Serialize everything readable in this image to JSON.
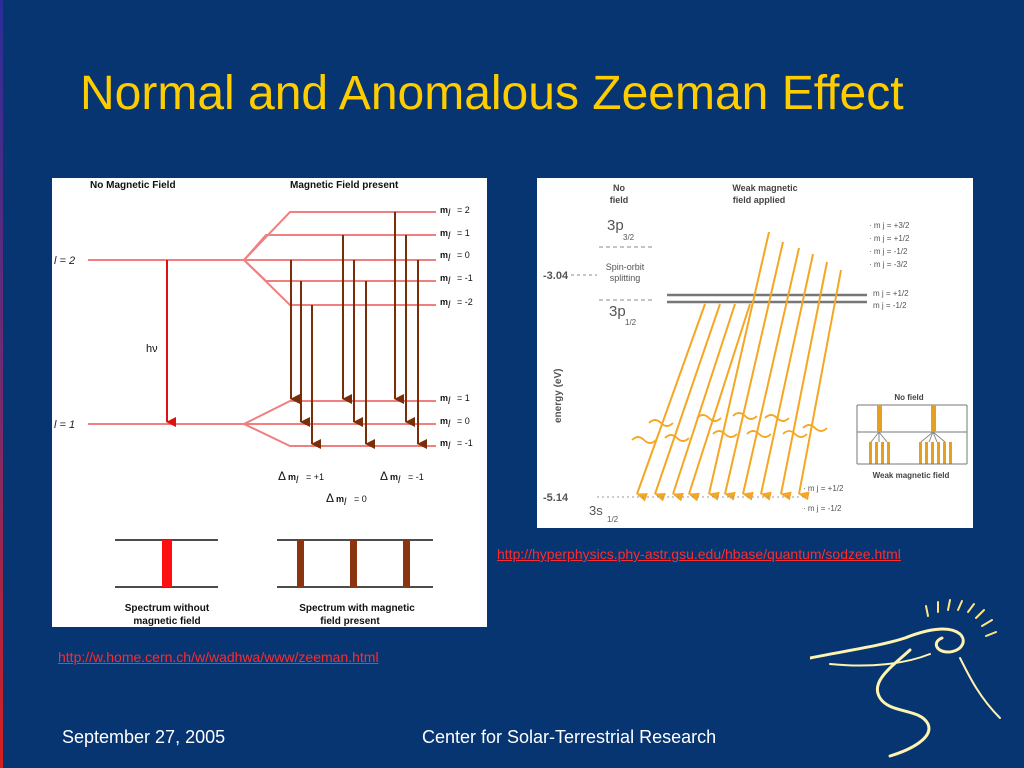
{
  "slide": {
    "title": "Normal and Anomalous Zeeman Effect",
    "footer_date": "September 27, 2005",
    "footer_center": "Center for Solar-Terrestrial Research"
  },
  "links": {
    "left": "http://w.home.cern.ch/w/wadhwa/www/zeeman.html",
    "right": "http://hyperphysics.phy-astr.gsu.edu/hbase/quantum/sodzee.html"
  },
  "left_diagram": {
    "header_left": "No Magnetic Field",
    "header_right": "Magnetic Field present",
    "upper_level": "l = 2",
    "lower_level": "l = 1",
    "photon": "hν",
    "ml_prefix": "m",
    "ml_sub": "l",
    "upper_ml": [
      "=  2",
      "=  1",
      "=  0",
      "=  -1",
      "=  -2"
    ],
    "lower_ml": [
      "=  1",
      "=  0",
      "=  -1"
    ],
    "delta_symbol": "Δ",
    "delta_plus": "= +1",
    "delta_minus": "= -1",
    "delta_zero": "= 0",
    "caption_left": [
      "Spectrum without",
      "magnetic field"
    ],
    "caption_right": [
      "Spectrum with magnetic",
      "field present"
    ],
    "colors": {
      "level": "#f08080",
      "hnu": "#e01010",
      "transition": "#7a2e08",
      "spectrum_single": "#ff1010",
      "spectrum_triplet": "#8a3410"
    }
  },
  "right_diagram": {
    "header_left": [
      "No",
      "field"
    ],
    "header_right": [
      "Weak magnetic",
      "field applied"
    ],
    "energy_top": "-3.04",
    "energy_bottom": "-5.14",
    "axis_label": "energy (eV)",
    "state_3p32_main": "3p",
    "state_3p32_sub": "3/2",
    "state_3p12_main": "3p",
    "state_3p12_sub": "1/2",
    "state_3s12_main": "3s",
    "state_3s12_sub": "1/2",
    "spin_orbit": [
      "Spin-orbit",
      "splitting"
    ],
    "mj_upper": [
      "· m j = +3/2",
      "· m j = +1/2",
      "· m j = -1/2",
      "· m j = -3/2"
    ],
    "mj_mid": [
      "m j = +1/2",
      "m j = -1/2"
    ],
    "mj_lower": [
      "· m j = +1/2",
      "· m j = -1/2"
    ],
    "inset_top": "No field",
    "inset_bottom": "Weak magnetic field",
    "colors": {
      "arrow": "#f5a623",
      "arrow_fill": "#ffcc66"
    }
  }
}
